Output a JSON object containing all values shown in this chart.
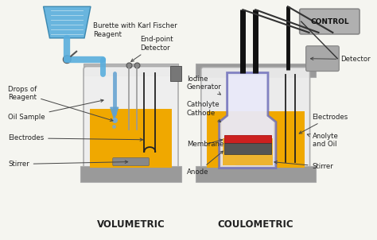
{
  "background_color": "#f5f5f0",
  "vol_label": "VOLUMETRIC",
  "coul_label": "COULOMETRIC",
  "control_label": "CONTROL",
  "colors": {
    "burette_blue": "#5aaedd",
    "burette_dark": "#3080aa",
    "oil_yellow": "#f0a800",
    "oil_yellow_edge": "#d09000",
    "vessel_gray": "#9a9a9a",
    "vessel_top_gray": "#b8b8b8",
    "vessel_body": "#e8e8e8",
    "vessel_edge": "#aaaaaa",
    "stirrer_gray": "#888888",
    "stirrer_edge": "#666666",
    "electrode_dark": "#222222",
    "inner_vessel_blue": "#7070bb",
    "inner_vessel_fill": "#dde0f0",
    "membrane_red": "#cc2020",
    "control_box": "#b0b0b0",
    "control_edge": "#888888",
    "detector_box": "#a8a8a8",
    "tube_black": "#111111",
    "text_dark": "#222222",
    "arrow_color": "#444444",
    "drop_blue": "#70aadd",
    "valve_gray": "#808080",
    "needle_blue": "#60a0d0"
  }
}
